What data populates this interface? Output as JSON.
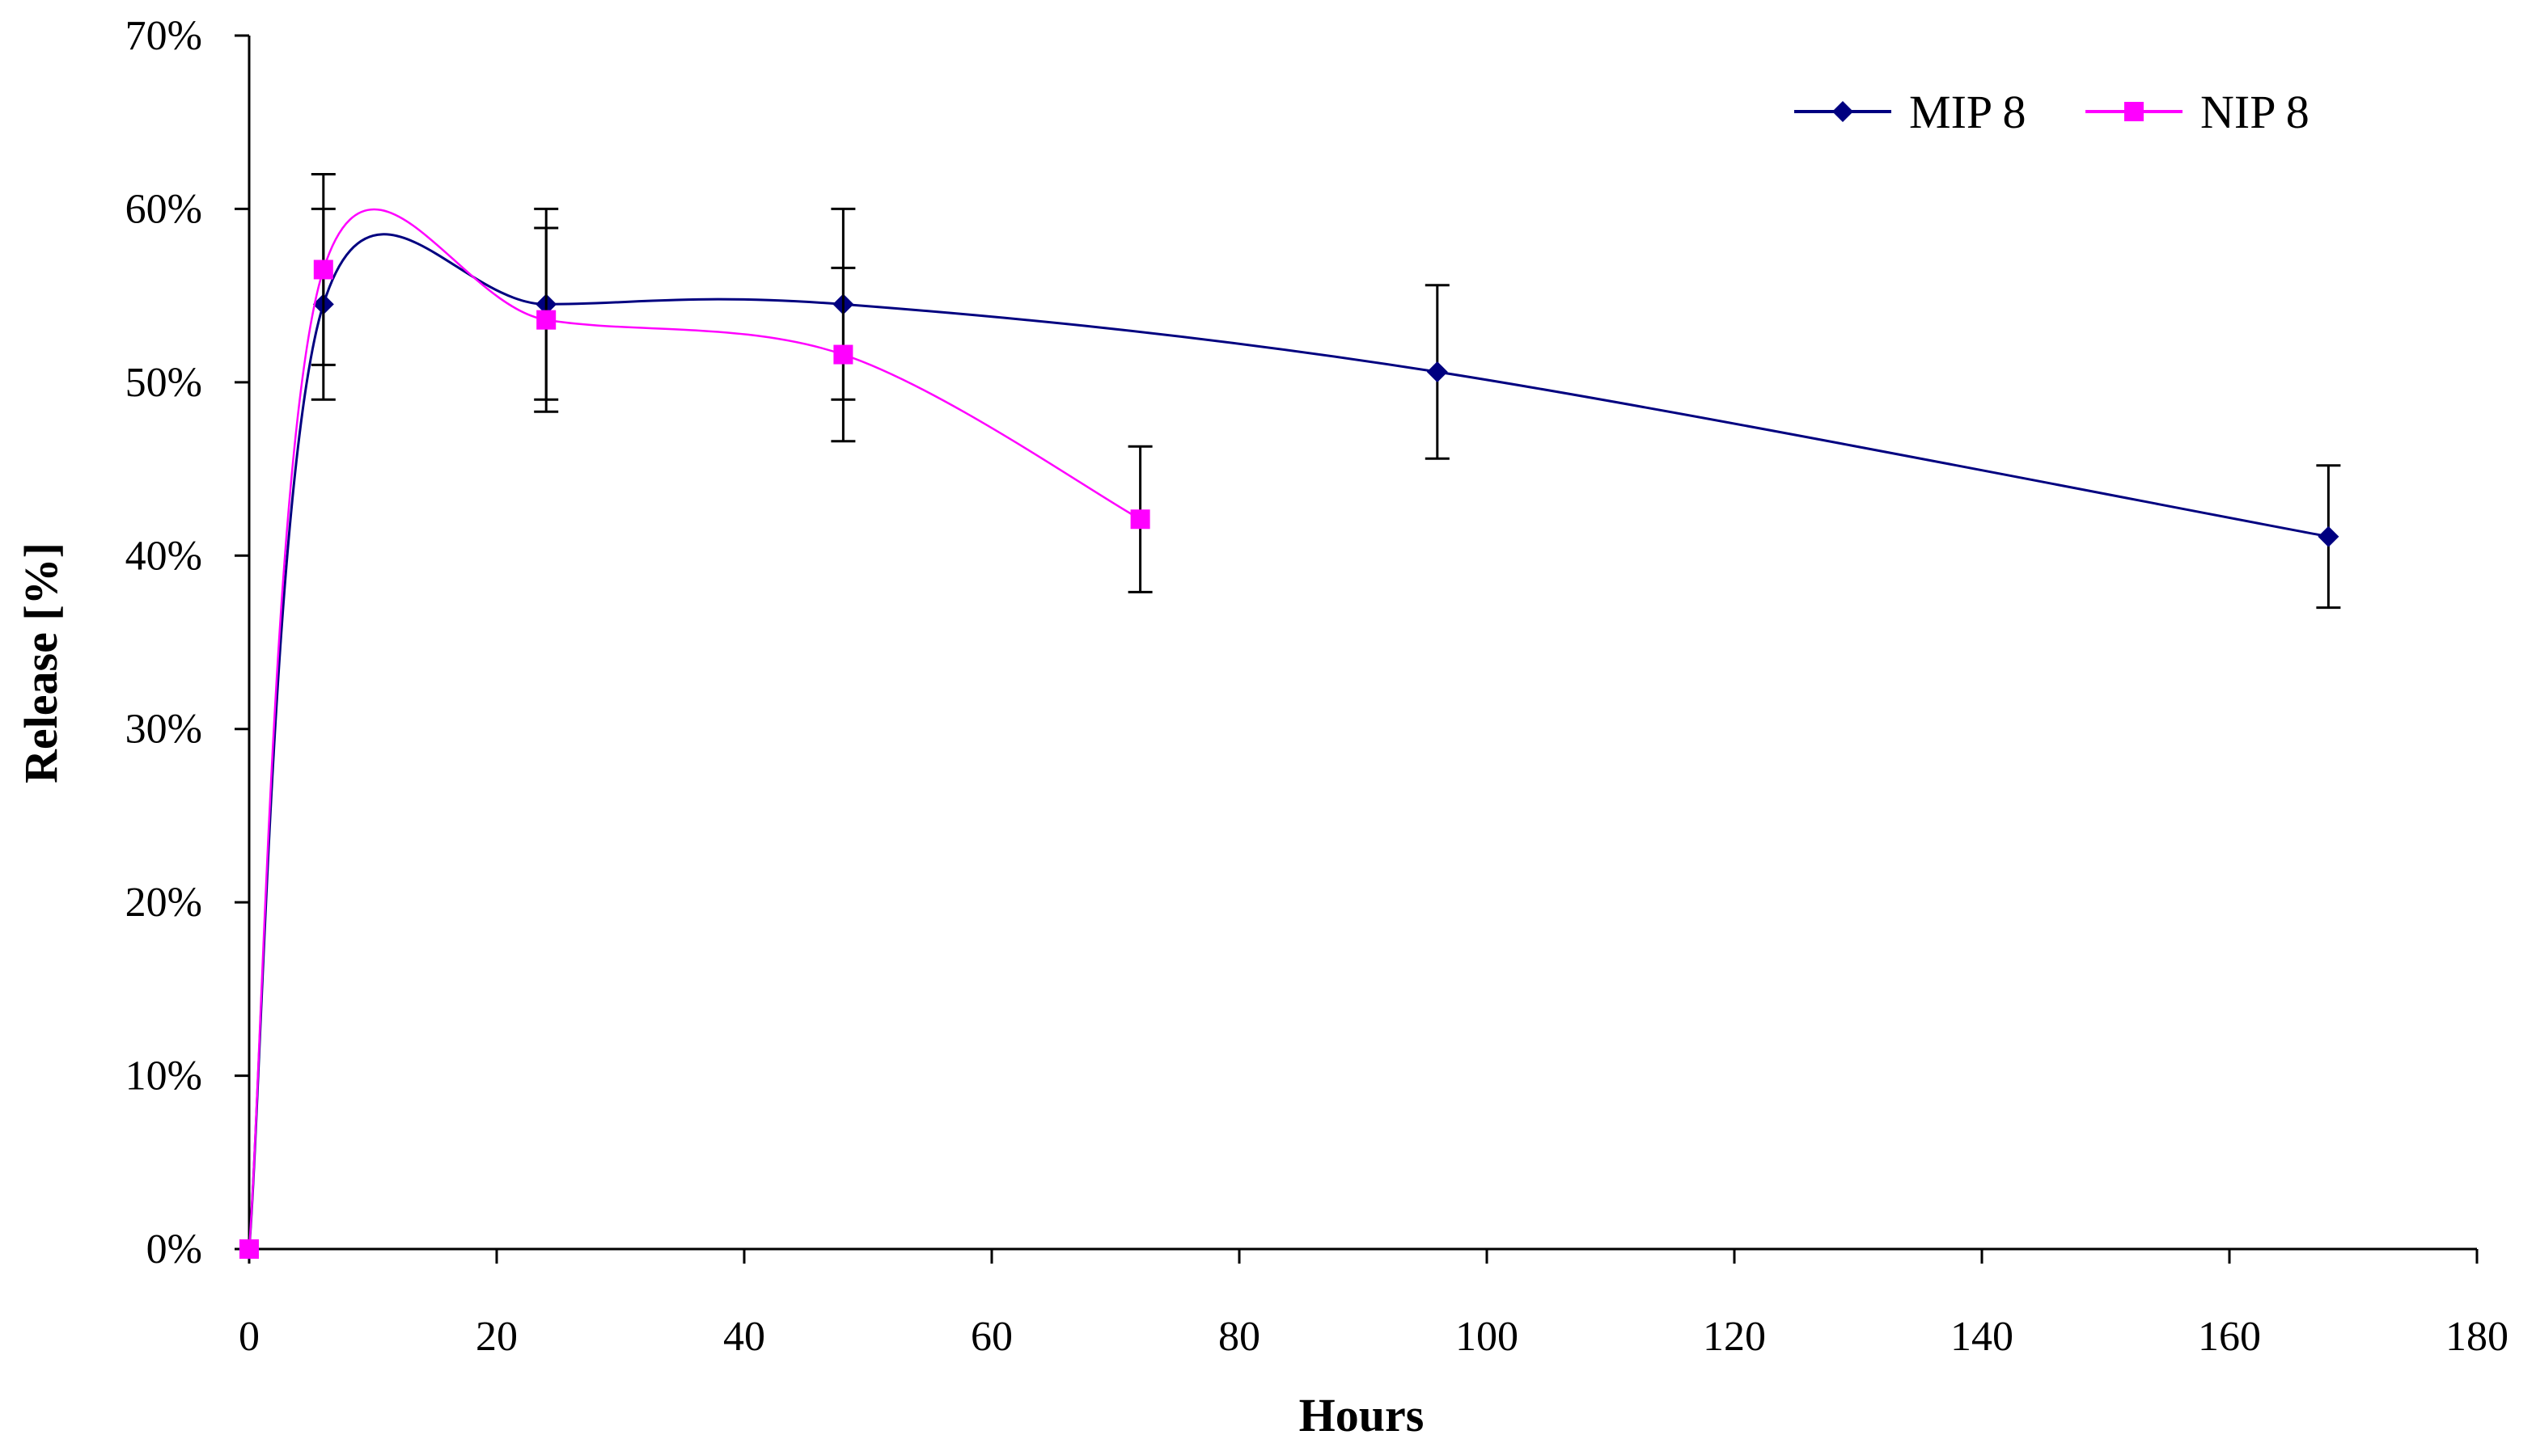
{
  "chart_data": {
    "type": "line",
    "title": "",
    "xlabel": "Hours",
    "ylabel": "Release [%]",
    "xlim": [
      0,
      180
    ],
    "ylim": [
      0,
      70
    ],
    "x_ticks": [
      0,
      20,
      40,
      60,
      80,
      100,
      120,
      140,
      160,
      180
    ],
    "x_tick_labels": [
      "0",
      "20",
      "40",
      "60",
      "80",
      "100",
      "120",
      "140",
      "160",
      "180"
    ],
    "y_ticks": [
      0,
      10,
      20,
      30,
      40,
      50,
      60,
      70
    ],
    "y_tick_labels": [
      "0%",
      "10%",
      "20%",
      "30%",
      "40%",
      "50%",
      "60%",
      "70%"
    ],
    "grid": false,
    "legend_position": "top-right",
    "series": [
      {
        "name": "MIP 8",
        "color": "#000080",
        "marker": "diamond",
        "x": [
          0,
          6,
          24,
          48,
          96,
          168
        ],
        "y": [
          0,
          54.5,
          54.5,
          54.5,
          50.6,
          41.1
        ],
        "error": [
          0,
          5.5,
          5.5,
          5.5,
          5.0,
          4.1
        ]
      },
      {
        "name": "NIP 8",
        "color": "#FF00FF",
        "marker": "square",
        "x": [
          0,
          6,
          24,
          48,
          72
        ],
        "y": [
          0,
          56.5,
          53.6,
          51.6,
          42.1
        ],
        "error": [
          0,
          5.5,
          5.3,
          5.0,
          4.2
        ]
      }
    ]
  }
}
